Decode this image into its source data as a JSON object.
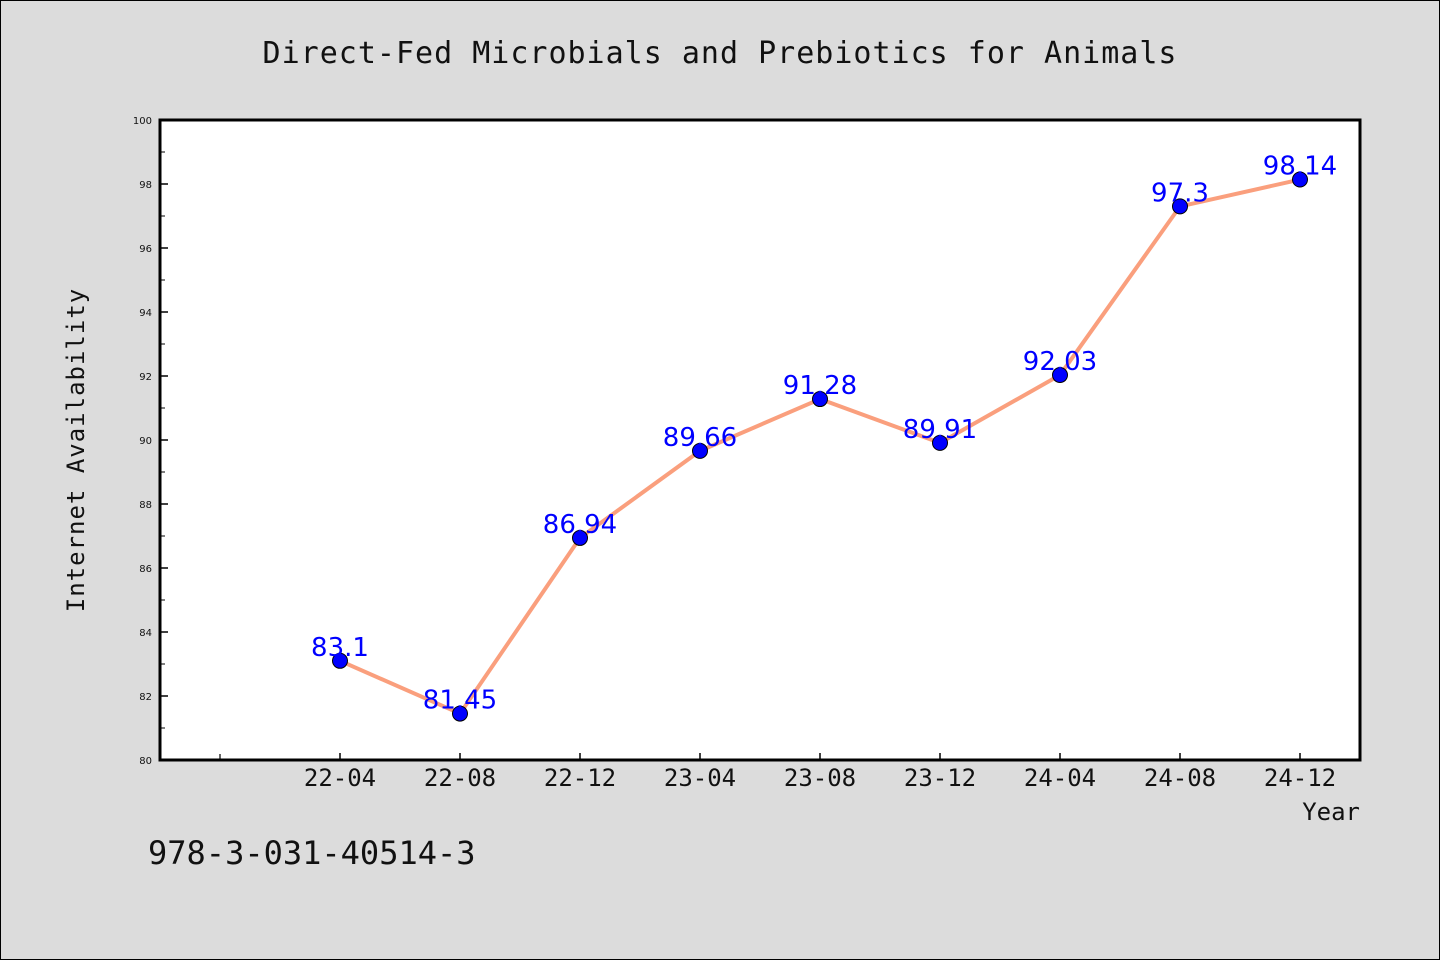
{
  "colors": {
    "background": "#dcdcdc",
    "plot_background": "#ffffff",
    "line": "#fa9f7d",
    "marker": "#0000ff",
    "data_label": "#0000ff",
    "text": "#111111"
  },
  "footer_code": "978-3-031-40514-3",
  "chart_data": {
    "type": "line",
    "title": "Direct-Fed Microbials and Prebiotics for Animals",
    "xlabel": "Year",
    "ylabel": "Internet Availability",
    "categories": [
      "22-04",
      "22-08",
      "22-12",
      "23-04",
      "23-08",
      "23-12",
      "24-04",
      "24-08",
      "24-12"
    ],
    "series": [
      {
        "values": [
          83.1,
          81.45,
          86.94,
          89.66,
          91.28,
          89.91,
          92.03,
          97.3,
          98.14
        ],
        "labels": [
          "83.1",
          "81.45",
          "86.94",
          "89.66",
          "91.28",
          "89.91",
          "92.03",
          "97.3",
          "98.14"
        ]
      }
    ],
    "ylim": [
      80,
      100
    ],
    "yticks": [
      "80",
      "82",
      "84",
      "86",
      "88",
      "90",
      "92",
      "94",
      "96",
      "98",
      "100"
    ],
    "grid": false,
    "legend": "none"
  }
}
